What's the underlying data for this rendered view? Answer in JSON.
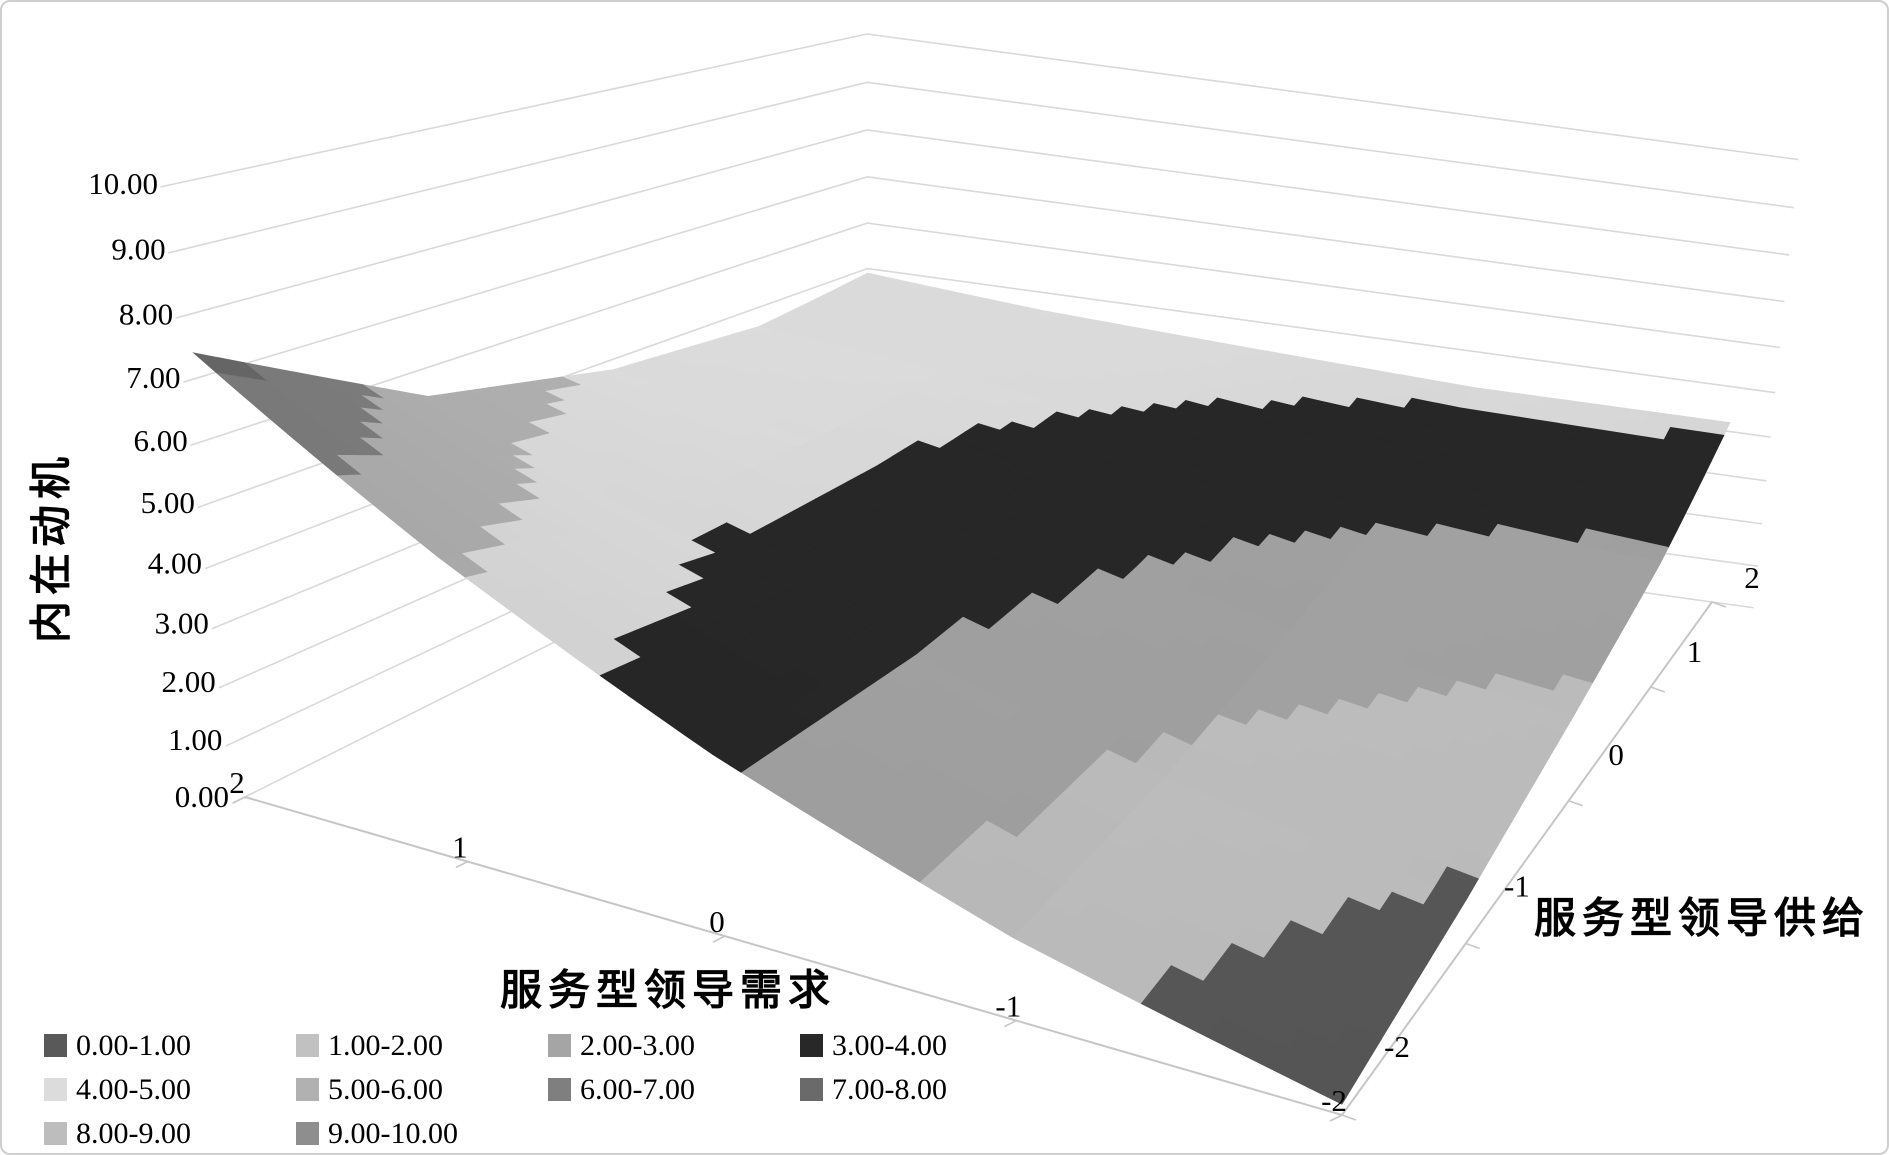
{
  "frame": {
    "background": "#FFFFFF",
    "border_color": "#CFCFCF"
  },
  "chart_data": {
    "type": "surface",
    "title": "",
    "value_axis": {
      "title": "内在动机",
      "min": 0,
      "max": 10,
      "interval": 1,
      "tick_labels": [
        "0.00",
        "1.00",
        "2.00",
        "3.00",
        "4.00",
        "5.00",
        "6.00",
        "7.00",
        "8.00",
        "9.00",
        "10.00"
      ]
    },
    "category_axis": {
      "title": "服务型领导需求",
      "tick_labels": [
        "2",
        "1",
        "0",
        "-1",
        "-2"
      ]
    },
    "series_axis": {
      "title": "服务型领导供给",
      "tick_labels": [
        "-2",
        "-1",
        "0",
        "1",
        "2"
      ]
    },
    "surface": {
      "categories": [
        2,
        1,
        0,
        -1,
        -2
      ],
      "series": [
        {
          "name": "-2",
          "values": [
            7.4,
            5.2,
            3.2,
            1.5,
            0.2
          ]
        },
        {
          "name": "-1",
          "values": [
            5.5,
            4.3,
            3.1,
            1.8,
            0.9
          ]
        },
        {
          "name": "0",
          "values": [
            4.8,
            4.2,
            3.4,
            2.4,
            1.8
          ]
        },
        {
          "name": "1",
          "values": [
            4.6,
            4.3,
            3.9,
            3.2,
            2.8
          ]
        },
        {
          "name": "2",
          "values": [
            4.9,
            4.6,
            4.4,
            4.2,
            4.2
          ]
        }
      ]
    },
    "legend": [
      {
        "label": "0.00-1.00",
        "color": "#595959"
      },
      {
        "label": "1.00-2.00",
        "color": "#C1C1C1"
      },
      {
        "label": "2.00-3.00",
        "color": "#A5A5A5"
      },
      {
        "label": "3.00-4.00",
        "color": "#282828"
      },
      {
        "label": "4.00-5.00",
        "color": "#DCDCDC"
      },
      {
        "label": "5.00-6.00",
        "color": "#B1B1B1"
      },
      {
        "label": "6.00-7.00",
        "color": "#7F7F7F"
      },
      {
        "label": "7.00-8.00",
        "color": "#6A6A6A"
      },
      {
        "label": "8.00-9.00",
        "color": "#BDBDBD"
      },
      {
        "label": "9.00-10.00",
        "color": "#8E8E8E"
      }
    ],
    "gridline_color": "#D9D9D9",
    "axis_line_color": "#C6C6C6",
    "text_color": "#000000"
  }
}
